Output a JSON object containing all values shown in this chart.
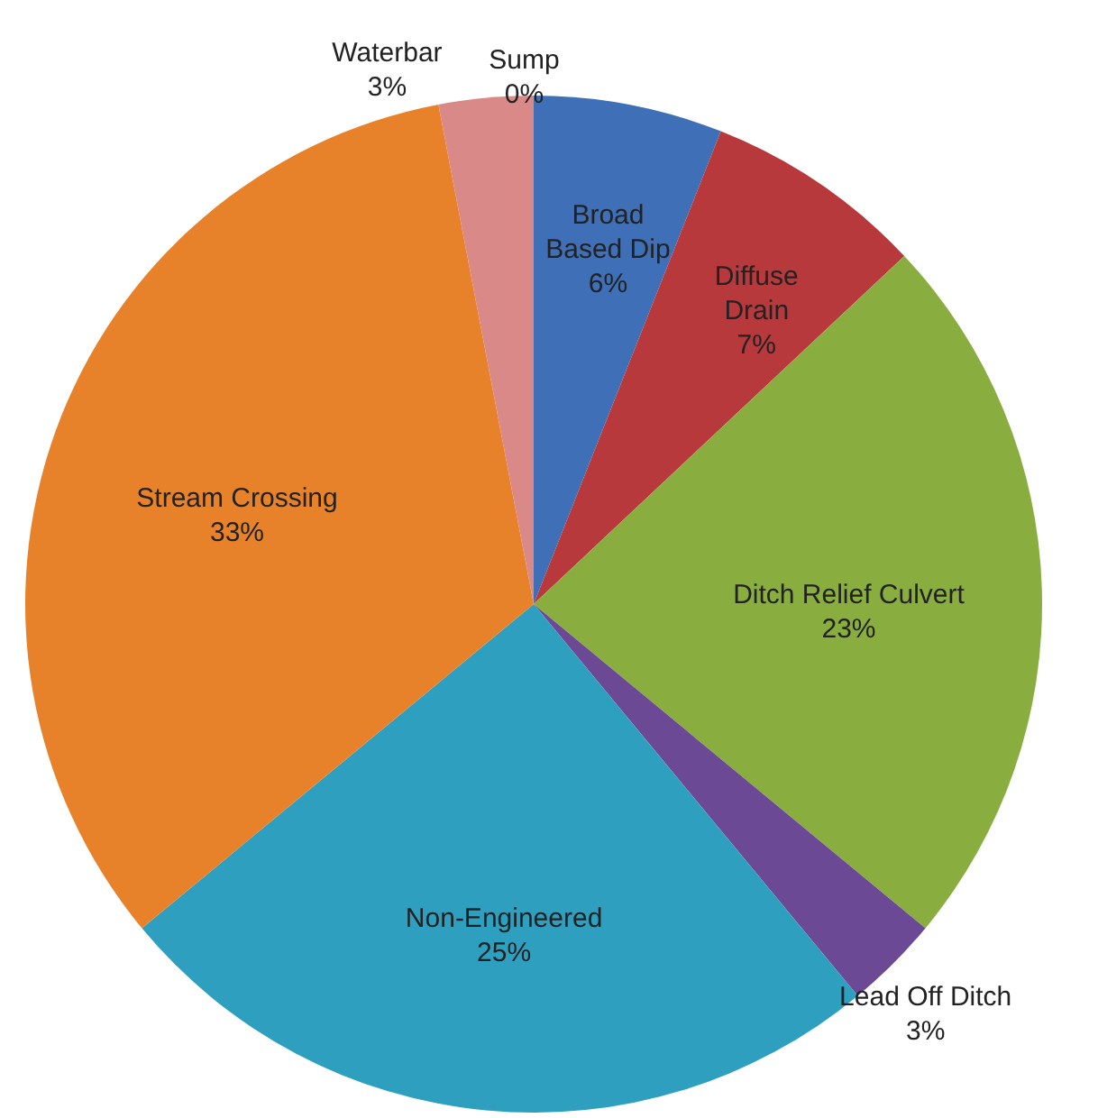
{
  "chart_data": {
    "type": "pie",
    "categories": [
      "Broad Based Dip",
      "Diffuse Drain",
      "Ditch Relief Culvert",
      "Lead Off Ditch",
      "Non-Engineered",
      "Stream Crossing",
      "Sump",
      "Waterbar"
    ],
    "values": [
      6,
      7,
      23,
      3,
      25,
      33,
      0,
      3
    ],
    "colors": [
      "#3f6fb6",
      "#b8393b",
      "#8aad40",
      "#6b4994",
      "#2f9fc0",
      "#e8822a",
      "#c0504d",
      "#d98a88"
    ],
    "value_labels": [
      "6%",
      "7%",
      "23%",
      "3%",
      "25%",
      "33%",
      "0%",
      "3%"
    ]
  }
}
